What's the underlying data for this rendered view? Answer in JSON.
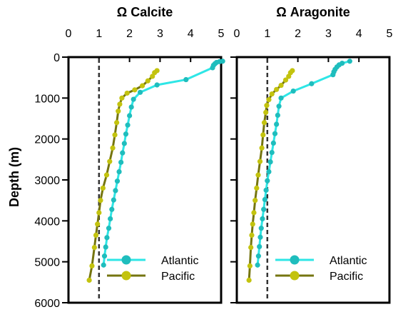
{
  "chart_data": [
    {
      "type": "line",
      "title": "Ω Calcite",
      "xlabel": "",
      "ylabel": "Depth (m)",
      "xlim": [
        0,
        5
      ],
      "ylim": [
        0,
        6000
      ],
      "y_inverted": true,
      "x_ticks": [
        "0",
        "1",
        "2",
        "3",
        "4",
        "5"
      ],
      "y_ticks": [
        "0",
        "1000",
        "2000",
        "3000",
        "4000",
        "5000",
        "6000"
      ],
      "reference_line": {
        "x": 1,
        "style": "dashed",
        "color": "#333333"
      },
      "legend": {
        "position": "bottom-right"
      },
      "series": [
        {
          "name": "Atlantic",
          "color": "#2ee6e6",
          "marker_color": "#1fbdbd",
          "points": [
            [
              5.05,
              100
            ],
            [
              4.95,
              110
            ],
            [
              4.85,
              130
            ],
            [
              4.8,
              160
            ],
            [
              4.75,
              200
            ],
            [
              4.72,
              260
            ],
            [
              3.85,
              550
            ],
            [
              2.9,
              680
            ],
            [
              2.35,
              860
            ],
            [
              2.13,
              1030
            ],
            [
              2.06,
              1220
            ],
            [
              2.0,
              1430
            ],
            [
              1.94,
              1660
            ],
            [
              1.88,
              1880
            ],
            [
              1.83,
              2110
            ],
            [
              1.77,
              2340
            ],
            [
              1.72,
              2570
            ],
            [
              1.66,
              2800
            ],
            [
              1.6,
              3030
            ],
            [
              1.54,
              3260
            ],
            [
              1.48,
              3490
            ],
            [
              1.42,
              3720
            ],
            [
              1.37,
              3950
            ],
            [
              1.32,
              4180
            ],
            [
              1.26,
              4410
            ],
            [
              1.22,
              4640
            ],
            [
              1.18,
              4860
            ],
            [
              1.15,
              5080
            ]
          ]
        },
        {
          "name": "Pacific",
          "color": "#757510",
          "marker_color": "#c3c30e",
          "points": [
            [
              2.9,
              330
            ],
            [
              2.82,
              380
            ],
            [
              2.75,
              470
            ],
            [
              2.6,
              580
            ],
            [
              2.42,
              700
            ],
            [
              2.17,
              800
            ],
            [
              1.92,
              880
            ],
            [
              1.75,
              1000
            ],
            [
              1.68,
              1150
            ],
            [
              1.63,
              1320
            ],
            [
              1.58,
              1600
            ],
            [
              1.52,
              1900
            ],
            [
              1.45,
              2220
            ],
            [
              1.35,
              2550
            ],
            [
              1.25,
              2880
            ],
            [
              1.13,
              3200
            ],
            [
              1.05,
              3500
            ],
            [
              1.0,
              3800
            ],
            [
              0.95,
              4080
            ],
            [
              0.9,
              4350
            ],
            [
              0.85,
              4650
            ],
            [
              0.77,
              5100
            ],
            [
              0.68,
              5450
            ]
          ]
        }
      ]
    },
    {
      "type": "line",
      "title": "Ω Aragonite",
      "xlabel": "",
      "ylabel": "",
      "xlim": [
        0,
        5
      ],
      "ylim": [
        0,
        6000
      ],
      "y_inverted": true,
      "x_ticks": [
        "0",
        "1",
        "2",
        "3",
        "4",
        "5"
      ],
      "reference_line": {
        "x": 1,
        "style": "dashed",
        "color": "#333333"
      },
      "legend": {
        "position": "bottom-right"
      },
      "series": [
        {
          "name": "Atlantic",
          "color": "#2ee6e6",
          "marker_color": "#1fbdbd",
          "points": [
            [
              3.7,
              100
            ],
            [
              3.45,
              150
            ],
            [
              3.35,
              190
            ],
            [
              3.28,
              240
            ],
            [
              3.22,
              300
            ],
            [
              3.18,
              360
            ],
            [
              3.15,
              430
            ],
            [
              2.45,
              650
            ],
            [
              1.85,
              830
            ],
            [
              1.45,
              1000
            ],
            [
              1.38,
              1200
            ],
            [
              1.34,
              1420
            ],
            [
              1.3,
              1640
            ],
            [
              1.25,
              1870
            ],
            [
              1.2,
              2100
            ],
            [
              1.15,
              2330
            ],
            [
              1.1,
              2560
            ],
            [
              1.05,
              2800
            ],
            [
              1.0,
              3020
            ],
            [
              0.96,
              3250
            ],
            [
              0.92,
              3480
            ],
            [
              0.88,
              3720
            ],
            [
              0.84,
              3950
            ],
            [
              0.8,
              4180
            ],
            [
              0.77,
              4400
            ],
            [
              0.74,
              4630
            ],
            [
              0.71,
              4860
            ],
            [
              0.68,
              5080
            ]
          ]
        },
        {
          "name": "Pacific",
          "color": "#757510",
          "marker_color": "#c3c30e",
          "points": [
            [
              1.82,
              330
            ],
            [
              1.76,
              380
            ],
            [
              1.7,
              470
            ],
            [
              1.6,
              560
            ],
            [
              1.45,
              690
            ],
            [
              1.3,
              790
            ],
            [
              1.15,
              900
            ],
            [
              1.05,
              1040
            ],
            [
              0.98,
              1180
            ],
            [
              0.95,
              1350
            ],
            [
              0.9,
              1600
            ],
            [
              0.86,
              1900
            ],
            [
              0.82,
              2220
            ],
            [
              0.76,
              2550
            ],
            [
              0.7,
              2880
            ],
            [
              0.65,
              3200
            ],
            [
              0.6,
              3500
            ],
            [
              0.56,
              3800
            ],
            [
              0.52,
              4080
            ],
            [
              0.49,
              4350
            ],
            [
              0.46,
              4650
            ],
            [
              0.43,
              5100
            ],
            [
              0.4,
              5450
            ]
          ]
        }
      ]
    }
  ]
}
